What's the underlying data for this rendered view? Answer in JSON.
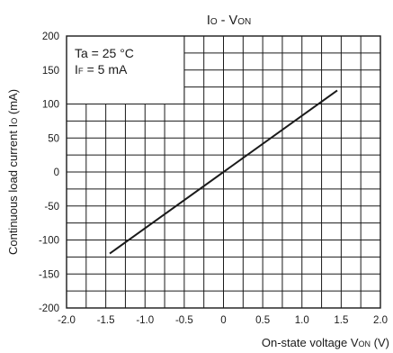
{
  "chart_data": {
    "type": "line",
    "title": {
      "main": "I",
      "main_sub": "O",
      "sep": " - V",
      "sep_sub": "ON"
    },
    "xlabel": {
      "main": "On-state voltage V",
      "sub": "ON",
      "unit": " (V)"
    },
    "ylabel": {
      "main": "Continuous load current I",
      "sub": "O",
      "unit": " (mA)"
    },
    "xlim": [
      -2.0,
      2.0
    ],
    "ylim": [
      -200,
      200
    ],
    "x_ticks": [
      "-2.0",
      "-1.5",
      "-1.0",
      "-0.5",
      "0",
      "0.5",
      "1.0",
      "1.5",
      "2.0"
    ],
    "y_ticks": [
      "200",
      "150",
      "100",
      "50",
      "0",
      "-50",
      "-100",
      "-150",
      "-200"
    ],
    "grid": true,
    "annotation": {
      "line1": "Ta = 25 °C",
      "line2_main": "I",
      "line2_sub": "F",
      "line2_rest": " = 5 mA"
    },
    "series": [
      {
        "x": [
          -1.45,
          1.45
        ],
        "y": [
          -120,
          120
        ]
      }
    ]
  }
}
